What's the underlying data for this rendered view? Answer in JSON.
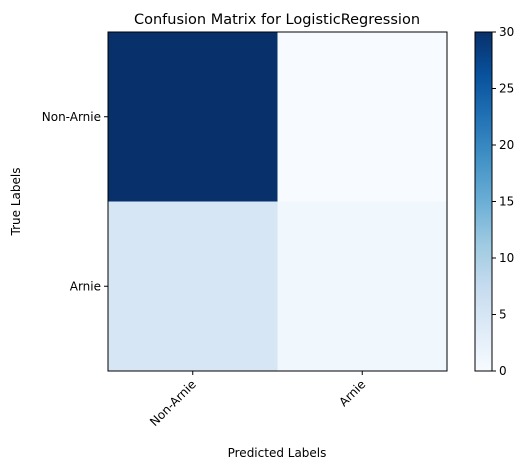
{
  "chart_data": {
    "type": "heatmap",
    "title": "Confusion Matrix for LogisticRegression",
    "xlabel": "Predicted Labels",
    "ylabel": "True Labels",
    "x_categories": [
      "Non-Arnie",
      "Arnie"
    ],
    "y_categories": [
      "Non-Arnie",
      "Arnie"
    ],
    "values": [
      [
        30,
        0
      ],
      [
        5,
        1
      ]
    ],
    "colormap": "Blues",
    "colorbar": {
      "min": 0,
      "max": 30,
      "ticks": [
        0,
        5,
        10,
        15,
        20,
        25,
        30
      ],
      "tick_labels": [
        "0",
        "5",
        "10",
        "15",
        "20",
        "25",
        "30"
      ]
    },
    "grid": false
  }
}
